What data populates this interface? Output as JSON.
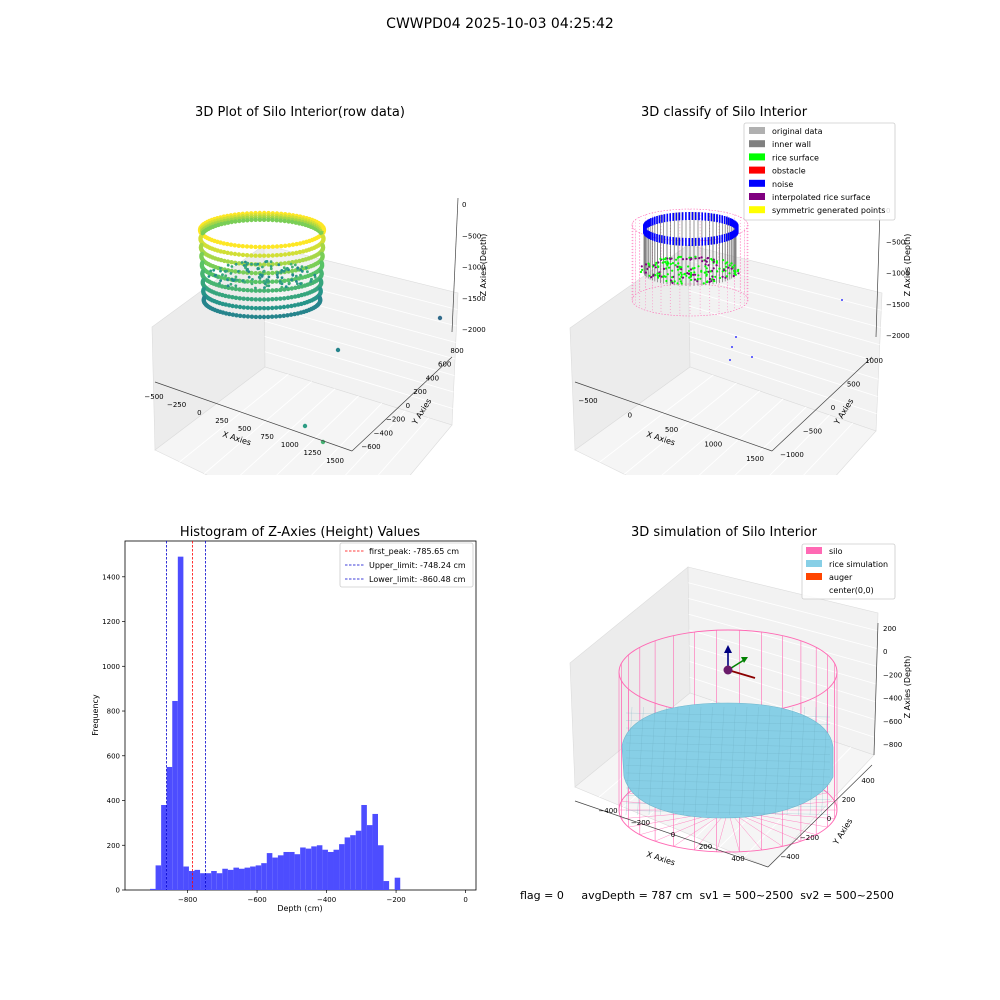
{
  "title": "CWWPD04 2025-10-03 04:25:42",
  "colors": {
    "histogram_bar": "#4d4dff",
    "first_peak_line": "#ff0000",
    "limit_lines": "#0000cc",
    "silo": "#ff69b4",
    "rice_simulation": "#87cfe6",
    "auger": "#ff4500",
    "inner_wall": "#808080",
    "rice_surface": "#00ff00",
    "noise": "#0000ff",
    "interpolated": "#800080",
    "symmetric": "#ffff00",
    "original": "#b0b0b0"
  },
  "chart_data": [
    {
      "type": "scatter",
      "title": "3D Plot of Silo Interior(row data)",
      "xlabel": "X Axies",
      "ylabel": "Y Axies",
      "zlabel": "Z Axies (Depth)",
      "xticks": [
        "−500",
        "−250",
        "0",
        "250",
        "500",
        "750",
        "1000",
        "1250",
        "1500"
      ],
      "yticks": [
        "−600",
        "−400",
        "−200",
        "0",
        "200",
        "400",
        "600",
        "800"
      ],
      "zticks": [
        "−2000",
        "−1500",
        "−1000",
        "−500",
        "0"
      ],
      "outlier_points": [
        [
          1500,
          200,
          -1100
        ],
        [
          700,
          0,
          -1300
        ],
        [
          500,
          -200,
          -1900
        ],
        [
          700,
          -300,
          -2000
        ]
      ]
    },
    {
      "type": "scatter",
      "title": "3D classify of Silo Interior",
      "xlabel": "X Axies",
      "ylabel": "Y Axies",
      "zlabel": "Z Axies (Depth)",
      "xticks": [
        "−500",
        "0",
        "500",
        "1000",
        "1500"
      ],
      "yticks": [
        "−1000",
        "−500",
        "0",
        "500",
        "1000"
      ],
      "zticks": [
        "−2000",
        "−1500",
        "−1000",
        "−500",
        "0"
      ],
      "legend": [
        "original data",
        "inner wall",
        "rice surface",
        "obstacle",
        "noise",
        "interpolated rice surface",
        "symmetric generated points"
      ],
      "legend_loc": "top-right"
    },
    {
      "type": "bar",
      "title": "Histogram of Z-Axies (Height) Values",
      "xlabel": "Depth (cm)",
      "ylabel": "Frequency",
      "xlim": [
        -980,
        30
      ],
      "ylim": [
        0,
        1560
      ],
      "xticks": [
        -800,
        -600,
        -400,
        -200,
        0
      ],
      "xtick_labels": [
        "−800",
        "−600",
        "−400",
        "−200",
        "0"
      ],
      "yticks": [
        0,
        200,
        400,
        600,
        800,
        1000,
        1200,
        1400
      ],
      "bin_width": 16,
      "bin_start": -908,
      "values": [
        5,
        110,
        380,
        550,
        845,
        1490,
        105,
        85,
        90,
        75,
        75,
        85,
        75,
        95,
        90,
        100,
        95,
        100,
        105,
        110,
        120,
        165,
        145,
        155,
        170,
        170,
        160,
        190,
        185,
        195,
        200,
        180,
        170,
        180,
        205,
        235,
        245,
        265,
        380,
        290,
        340,
        200,
        40,
        0,
        55
      ],
      "vlines": [
        {
          "name": "first_peak: -785.65 cm",
          "x": -785.65,
          "color": "red"
        },
        {
          "name": "Upper_limit: -748.24 cm",
          "x": -748.24,
          "color": "blue"
        },
        {
          "name": "Lower_limit: -860.48 cm",
          "x": -860.48,
          "color": "blue"
        }
      ],
      "legend_loc": "top-right"
    },
    {
      "type": "scatter",
      "title": "3D simulation of Silo Interior",
      "xlabel": "X Axies",
      "ylabel": "Y Axies",
      "zlabel": "Z Axies (Depth)",
      "xticks": [
        "−400",
        "−200",
        "0",
        "200",
        "400"
      ],
      "yticks": [
        "−400",
        "−200",
        "0",
        "200",
        "400"
      ],
      "zticks": [
        "−800",
        "−600",
        "−400",
        "−200",
        "0",
        "200"
      ],
      "legend": [
        "silo",
        "rice simulation",
        "auger",
        "center(0,0)"
      ],
      "legend_loc": "top-right"
    }
  ],
  "status": "flag = 0     avgDepth = 787 cm  sv1 = 500~2500  sv2 = 500~2500"
}
